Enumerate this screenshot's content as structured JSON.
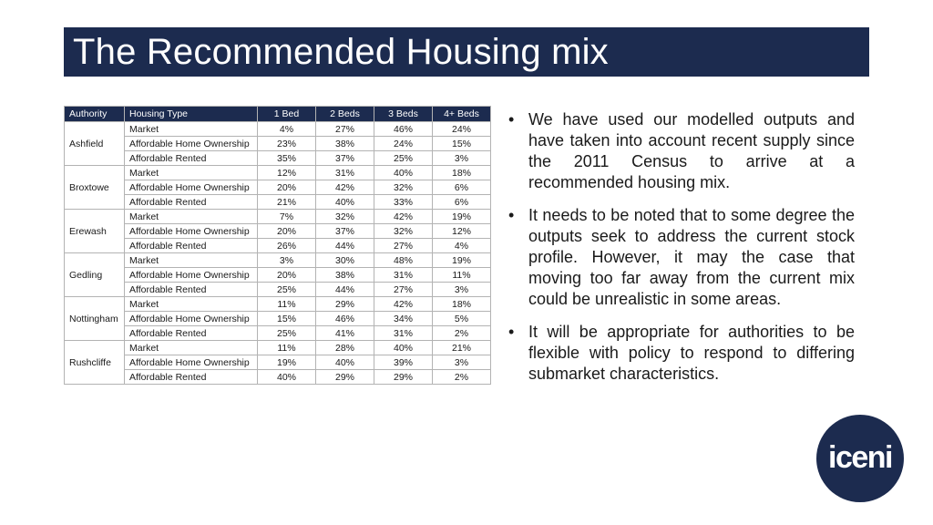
{
  "title": "The Recommended Housing mix",
  "table": {
    "headers": [
      "Authority",
      "Housing Type",
      "1 Bed",
      "2 Beds",
      "3 Beds",
      "4+ Beds"
    ],
    "groups": [
      {
        "authority": "Ashfield",
        "rows": [
          {
            "type": "Market",
            "values": [
              "4%",
              "27%",
              "46%",
              "24%"
            ]
          },
          {
            "type": "Affordable Home Ownership",
            "values": [
              "23%",
              "38%",
              "24%",
              "15%"
            ]
          },
          {
            "type": "Affordable Rented",
            "values": [
              "35%",
              "37%",
              "25%",
              "3%"
            ]
          }
        ]
      },
      {
        "authority": "Broxtowe",
        "rows": [
          {
            "type": "Market",
            "values": [
              "12%",
              "31%",
              "40%",
              "18%"
            ]
          },
          {
            "type": "Affordable Home Ownership",
            "values": [
              "20%",
              "42%",
              "32%",
              "6%"
            ]
          },
          {
            "type": "Affordable Rented",
            "values": [
              "21%",
              "40%",
              "33%",
              "6%"
            ]
          }
        ]
      },
      {
        "authority": "Erewash",
        "rows": [
          {
            "type": "Market",
            "values": [
              "7%",
              "32%",
              "42%",
              "19%"
            ]
          },
          {
            "type": "Affordable Home Ownership",
            "values": [
              "20%",
              "37%",
              "32%",
              "12%"
            ]
          },
          {
            "type": "Affordable Rented",
            "values": [
              "26%",
              "44%",
              "27%",
              "4%"
            ]
          }
        ]
      },
      {
        "authority": "Gedling",
        "rows": [
          {
            "type": "Market",
            "values": [
              "3%",
              "30%",
              "48%",
              "19%"
            ]
          },
          {
            "type": "Affordable Home Ownership",
            "values": [
              "20%",
              "38%",
              "31%",
              "11%"
            ]
          },
          {
            "type": "Affordable Rented",
            "values": [
              "25%",
              "44%",
              "27%",
              "3%"
            ]
          }
        ]
      },
      {
        "authority": "Nottingham",
        "rows": [
          {
            "type": "Market",
            "values": [
              "11%",
              "29%",
              "42%",
              "18%"
            ]
          },
          {
            "type": "Affordable Home Ownership",
            "values": [
              "15%",
              "46%",
              "34%",
              "5%"
            ]
          },
          {
            "type": "Affordable Rented",
            "values": [
              "25%",
              "41%",
              "31%",
              "2%"
            ]
          }
        ]
      },
      {
        "authority": "Rushcliffe",
        "rows": [
          {
            "type": "Market",
            "values": [
              "11%",
              "28%",
              "40%",
              "21%"
            ]
          },
          {
            "type": "Affordable Home Ownership",
            "values": [
              "19%",
              "40%",
              "39%",
              "3%"
            ]
          },
          {
            "type": "Affordable Rented",
            "values": [
              "40%",
              "29%",
              "29%",
              "2%"
            ]
          }
        ]
      }
    ]
  },
  "bullets": [
    "We have used our modelled outputs and have taken into account recent supply since the 2011 Census to arrive at a recommended housing mix.",
    "It needs to be noted that to some degree the outputs seek to address the current stock profile. However, it may the case that moving too far away from the current mix could be unrealistic in some areas.",
    "It will be appropriate for authorities to be flexible with policy to respond to differing submarket characteristics."
  ],
  "bullet_glyph": "•",
  "logo": {
    "text": "iceni",
    "icon": "iceni-logo"
  },
  "colors": {
    "navy": "#1c2b4f",
    "border": "#b3b3b3"
  }
}
